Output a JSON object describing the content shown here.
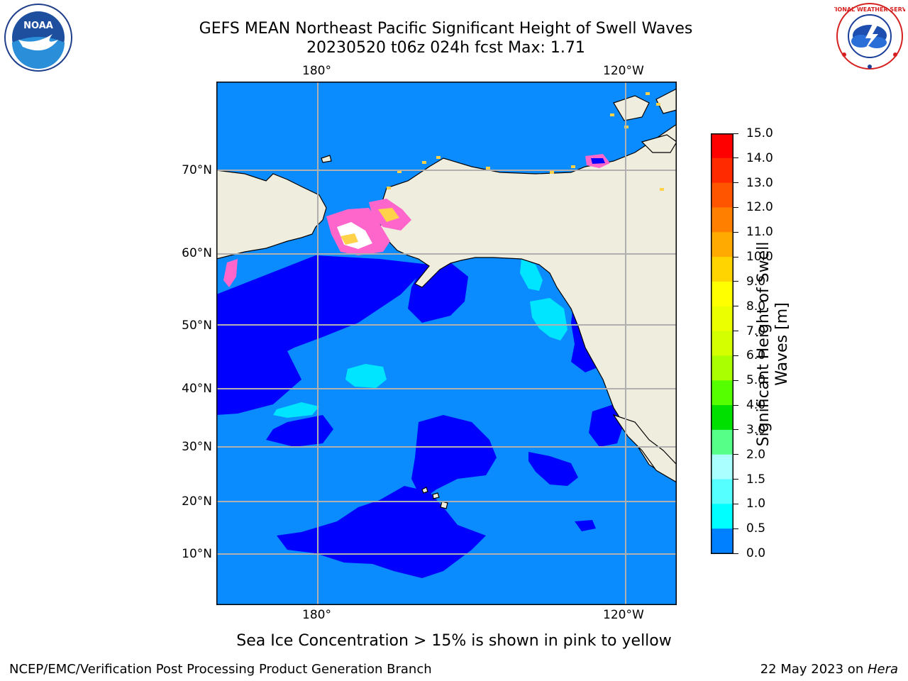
{
  "header": {
    "title_line1": "GEFS MEAN Northeast Pacific Significant Height of Swell Waves",
    "title_line2": "20230520 t06z 024h fcst   Max: 1.71"
  },
  "logos": {
    "noaa_text": "NOAA",
    "nws_text": "NATIONAL WEATHER SERVICE"
  },
  "map": {
    "lon_labels_top": [
      "180°",
      "120°W"
    ],
    "lon_labels_bottom": [
      "180°",
      "120°W"
    ],
    "lat_labels": [
      "70°N",
      "60°N",
      "50°N",
      "40°N",
      "30°N",
      "20°N",
      "10°N"
    ],
    "colors": {
      "land": "#efedde",
      "deep_ocean": "#0a8cff",
      "low_swell": "#0000ff",
      "moderate_swell": "#00e5ff",
      "ice_pink": "#ff66cc",
      "ice_yellow": "#ffd24a",
      "grid": "#b0b0b0"
    }
  },
  "colorbar": {
    "title_line1": "Significant Height of Swell",
    "title_line2": "Waves [m]",
    "ticks": [
      "15.0",
      "14.0",
      "13.0",
      "12.0",
      "11.0",
      "10.0",
      "9.0",
      "8.0",
      "7.0",
      "6.0",
      "5.0",
      "4.0",
      "3.0",
      "2.0",
      "1.5",
      "1.0",
      "0.5",
      "0.0"
    ],
    "colors": [
      "#ff0000",
      "#ff2a00",
      "#ff5500",
      "#ff8000",
      "#ffaa00",
      "#ffd400",
      "#ffff00",
      "#ecff00",
      "#d4ff00",
      "#aaff00",
      "#55ff00",
      "#00e000",
      "#55ff88",
      "#aaffff",
      "#55ffff",
      "#00ffff",
      "#0080ff",
      "#0000ff"
    ]
  },
  "note": "Sea Ice Concentration > 15% is shown in pink to yellow",
  "footer": {
    "left": "NCEP/EMC/Verification Post Processing Product Generation Branch",
    "date": "22 May 2023 on ",
    "machine": "Hera"
  }
}
